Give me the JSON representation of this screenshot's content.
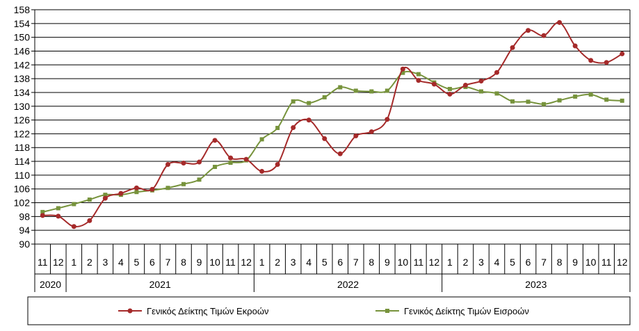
{
  "chart_data": {
    "type": "line",
    "ylim": [
      90,
      158
    ],
    "yticks": [
      90,
      94,
      98,
      102,
      106,
      110,
      114,
      118,
      122,
      126,
      130,
      134,
      138,
      142,
      146,
      150,
      154,
      158
    ],
    "grid": "horizontal",
    "legend_position": "bottom",
    "categories": [
      "11",
      "12",
      "1",
      "2",
      "3",
      "4",
      "5",
      "6",
      "7",
      "8",
      "9",
      "10",
      "11",
      "12",
      "1",
      "2",
      "3",
      "4",
      "5",
      "6",
      "7",
      "8",
      "9",
      "10",
      "11",
      "12",
      "1",
      "2",
      "3",
      "4",
      "5",
      "6",
      "7",
      "8",
      "9",
      "10",
      "11",
      "12"
    ],
    "year_groups": [
      {
        "label": "2020",
        "count": 2
      },
      {
        "label": "2021",
        "count": 12
      },
      {
        "label": "2022",
        "count": 12
      },
      {
        "label": "2023",
        "count": 12
      }
    ],
    "series": [
      {
        "name": "Γενικός Δείκτης Τιμών Εκροών",
        "color": "#a52a2a",
        "marker": "circle",
        "values": [
          98.3,
          98.1,
          95.1,
          96.8,
          103.3,
          104.7,
          106.3,
          105.9,
          113.1,
          113.5,
          113.8,
          120.1,
          115.0,
          114.6,
          111.1,
          113.1,
          123.8,
          126.0,
          120.6,
          116.2,
          121.4,
          122.6,
          126.2,
          140.8,
          137.5,
          136.4,
          133.5,
          136.1,
          137.3,
          139.8,
          147.0,
          152.0,
          150.5,
          154.3,
          147.5,
          143.3,
          142.7,
          145.2
        ]
      },
      {
        "name": "Γενικός Δείκτης Τιμών Εισροών",
        "color": "#77933c",
        "marker": "square",
        "values": [
          99.3,
          100.4,
          101.6,
          102.9,
          104.3,
          104.3,
          105.1,
          105.6,
          106.3,
          107.4,
          108.7,
          112.4,
          113.6,
          114.3,
          120.4,
          123.7,
          131.4,
          130.9,
          132.6,
          135.5,
          134.5,
          134.3,
          134.5,
          139.7,
          139.3,
          136.9,
          135.0,
          135.6,
          134.3,
          133.7,
          131.4,
          131.3,
          130.6,
          131.7,
          132.8,
          133.4,
          131.9,
          131.6
        ]
      }
    ]
  }
}
